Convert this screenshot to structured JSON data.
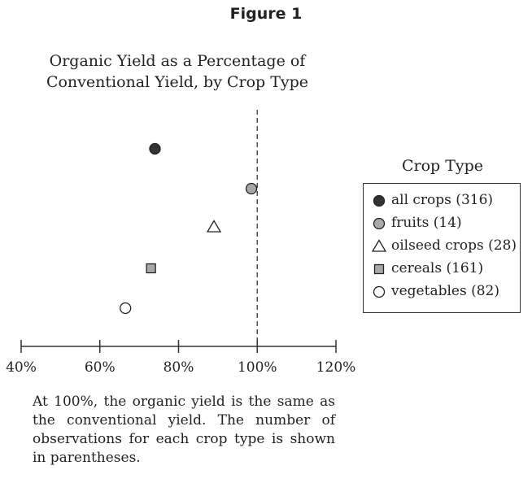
{
  "figure_label": "Figure 1",
  "chart_data": {
    "type": "scatter",
    "title": "Organic Yield as a Percentage of Conventional Yield, by Crop Type",
    "title_lines": [
      "Organic Yield as a Percentage of",
      "Conventional Yield, by Crop Type"
    ],
    "xlabel": "",
    "ylabel": "",
    "xlim": [
      40,
      120
    ],
    "xticks": [
      40,
      60,
      80,
      100,
      120
    ],
    "xtick_labels": [
      "40%",
      "60%",
      "80%",
      "100%",
      "120%"
    ],
    "reference_line": 100,
    "grid": false,
    "legend_title": "Crop Type",
    "legend_position": "right",
    "series": [
      {
        "name": "all crops (316)",
        "x": 74,
        "marker": "circle-filled-dark",
        "color": "#333333"
      },
      {
        "name": "fruits (14)",
        "x": 98.5,
        "marker": "circle-filled-gray",
        "color": "#a8a8a8"
      },
      {
        "name": "oilseed crops (28)",
        "x": 89,
        "marker": "triangle-open",
        "color": "#ffffff"
      },
      {
        "name": "cereals (161)",
        "x": 73,
        "marker": "square-filled-gray",
        "color": "#a8a8a8"
      },
      {
        "name": "vegetables (82)",
        "x": 66.5,
        "marker": "circle-open",
        "color": "#ffffff"
      }
    ]
  },
  "caption": "At 100%, the organic yield is the same as the conventional yield. The number of observations for each crop type is shown in parentheses."
}
